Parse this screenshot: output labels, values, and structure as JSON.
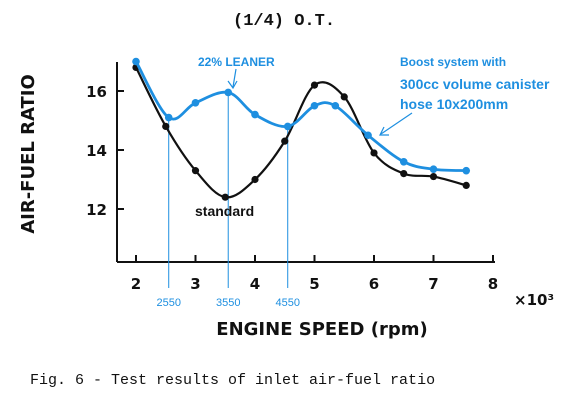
{
  "chart_data": {
    "type": "line",
    "title": "(1/4) O.T.",
    "xlabel": "ENGINE SPEED (rpm)",
    "ylabel": "AIR-FUEL RATIO",
    "x_multiplier": "×10³",
    "xlim": [
      2,
      8
    ],
    "ylim": [
      10.5,
      17.2
    ],
    "xticks": [
      "2",
      "3",
      "4",
      "5",
      "6",
      "7",
      "8"
    ],
    "yticks": [
      "12",
      "14",
      "16"
    ],
    "grid": false,
    "series": [
      {
        "name": "standard",
        "color": "#111111",
        "x": [
          2.0,
          2.5,
          3.0,
          3.5,
          4.0,
          4.5,
          5.0,
          5.5,
          6.0,
          6.5,
          7.0,
          7.55
        ],
        "y": [
          16.8,
          14.8,
          13.3,
          12.4,
          13.0,
          14.3,
          16.2,
          15.8,
          13.9,
          13.2,
          13.1,
          12.8
        ]
      },
      {
        "name": "Boost system with 300cc volume canister hose 10x200mm",
        "label_lines": [
          "Boost system with",
          "300cc volume canister",
          "hose 10x200mm"
        ],
        "color": "#1e8fe0",
        "x": [
          2.0,
          2.55,
          3.0,
          3.55,
          4.0,
          4.55,
          5.0,
          5.35,
          5.9,
          6.5,
          7.0,
          7.55
        ],
        "y": [
          17.0,
          15.1,
          15.6,
          15.95,
          15.2,
          14.8,
          15.5,
          15.5,
          14.5,
          13.6,
          13.35,
          13.3
        ]
      }
    ],
    "markers": [
      {
        "x": 2.55,
        "label": "2550"
      },
      {
        "x": 3.55,
        "label": "3550"
      },
      {
        "x": 4.55,
        "label": "4550"
      }
    ],
    "annotation": {
      "text": "22% LEANER",
      "x": 3.55
    }
  },
  "caption": "Fig. 6 - Test results of inlet air-fuel ratio"
}
